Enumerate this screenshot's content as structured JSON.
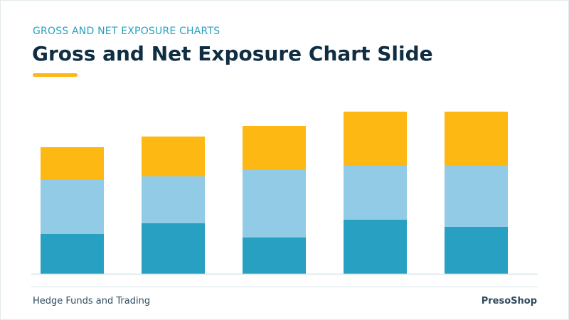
{
  "slide": {
    "eyebrow": "GROSS AND NET EXPOSURE CHARTS",
    "title": "Gross and Net Exposure Chart Slide",
    "footer_left": "Hedge Funds and Trading",
    "footer_right": "PresoShop"
  },
  "colors": {
    "accent": "#fdb813",
    "eyebrow": "#26a0c0",
    "title": "#102e42",
    "series_bottom": "#27a0c1",
    "series_middle": "#92cbe6",
    "series_top": "#fdb813",
    "axis": "#d6e3ea"
  },
  "chart_data": {
    "type": "bar",
    "stacked": true,
    "categories": [
      "",
      "",
      "",
      "",
      ""
    ],
    "series": [
      {
        "values": [
          56,
          71,
          51,
          76,
          66
        ]
      },
      {
        "values": [
          76,
          66,
          96,
          76,
          86
        ]
      },
      {
        "values": [
          46,
          56,
          61,
          76,
          76
        ]
      }
    ],
    "ylim": [
      0,
      230
    ],
    "grid": false,
    "legend": "none"
  }
}
